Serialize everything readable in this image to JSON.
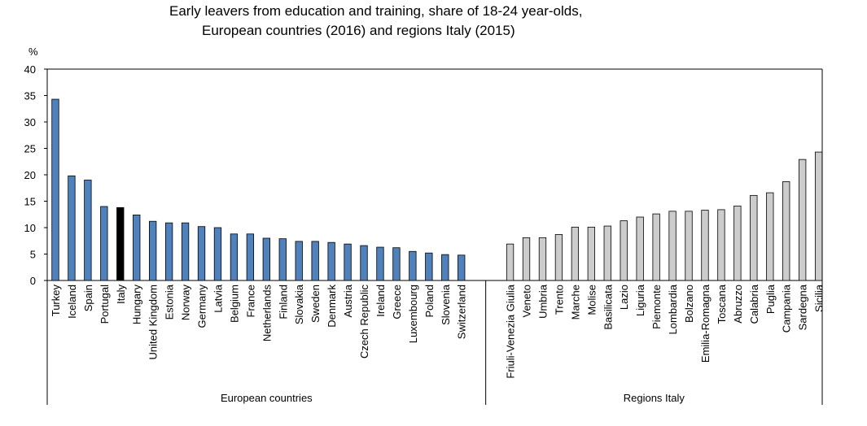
{
  "chart_data": {
    "type": "bar",
    "title_lines": [
      "Early leavers from education and training, share of 18-24 year-olds,",
      "European countries (2016) and regions Italy (2015)"
    ],
    "y_unit": "%",
    "ylim": [
      0,
      40
    ],
    "yticks": [
      0,
      5,
      10,
      15,
      20,
      25,
      30,
      35,
      40
    ],
    "grid": false,
    "colors": {
      "europe": "#4f81bd",
      "italy_highlight": "#000000",
      "regions": "#cccccc",
      "bar_edge": "#000000"
    },
    "groups": [
      {
        "name": "European countries",
        "categories": [
          "Turkey",
          "Iceland",
          "Spain",
          "Portugal",
          "Italy",
          "Hungary",
          "United Kingdom",
          "Estonia",
          "Norway",
          "Germany",
          "Latvia",
          "Belgium",
          "France",
          "Netherlands",
          "Finland",
          "Slovakia",
          "Sweden",
          "Denmark",
          "Austria",
          "Czech Republic",
          "Ireland",
          "Greece",
          "Luxembourg",
          "Poland",
          "Slovenia",
          "Switzerland"
        ],
        "values": [
          34.3,
          19.8,
          19.0,
          14.0,
          13.8,
          12.4,
          11.2,
          10.9,
          10.9,
          10.2,
          10.0,
          8.8,
          8.8,
          8.0,
          7.9,
          7.4,
          7.4,
          7.2,
          6.9,
          6.6,
          6.3,
          6.2,
          5.5,
          5.2,
          4.9,
          4.8
        ],
        "highlight": "Italy"
      },
      {
        "name": "Regions Italy",
        "categories": [
          "Friuli-Venezia Giulia",
          "Veneto",
          "Umbria",
          "Trento",
          "Marche",
          "Molise",
          "Basilicata",
          "Lazio",
          "Liguria",
          "Piemonte",
          "Lombardia",
          "Bolzano",
          "Emilia-Romagna",
          "Toscana",
          "Abruzzo",
          "Calabria",
          "Puglia",
          "Campania",
          "Sardegna",
          "Sicilia"
        ],
        "values": [
          6.9,
          8.1,
          8.1,
          8.7,
          10.1,
          10.1,
          10.3,
          11.3,
          12.0,
          12.6,
          13.1,
          13.1,
          13.3,
          13.4,
          14.1,
          16.1,
          16.6,
          18.7,
          22.9,
          24.3
        ]
      }
    ]
  }
}
